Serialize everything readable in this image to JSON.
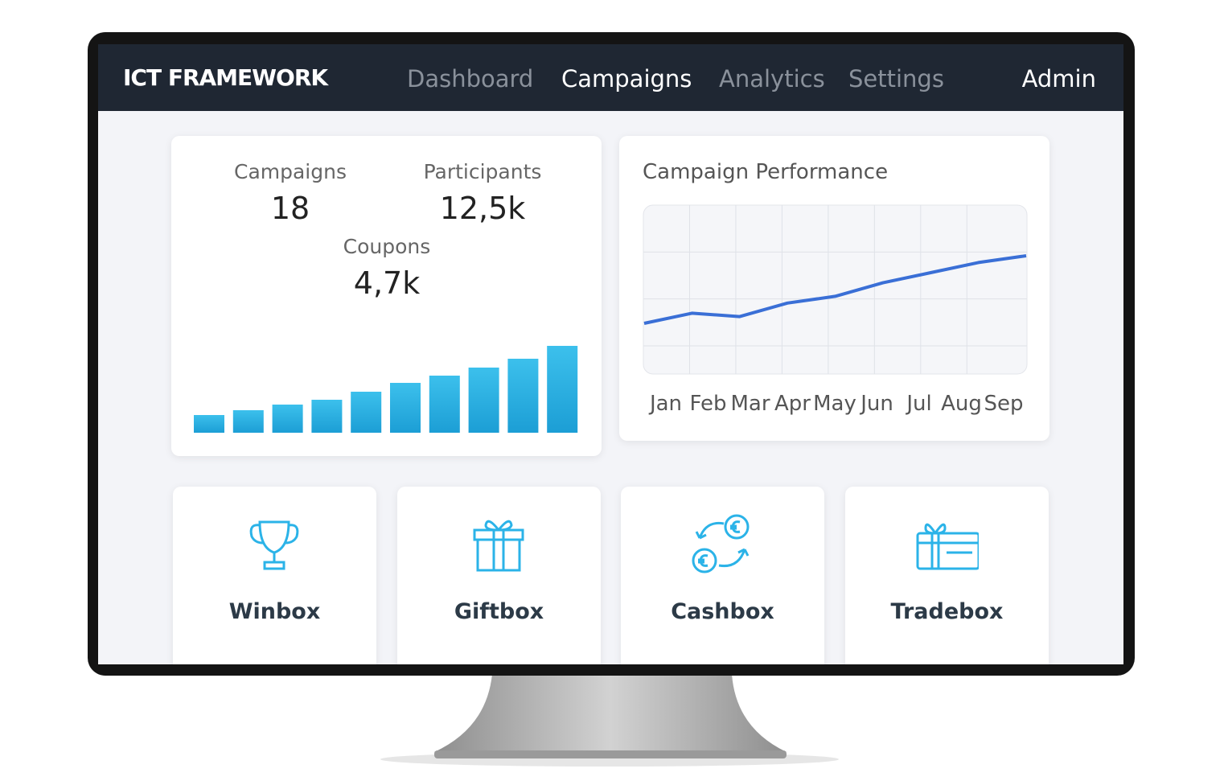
{
  "nav": {
    "brand": "ICT FRAMEWORK",
    "links": [
      "Dashboard",
      "Campaigns",
      "Analytics",
      "Settings"
    ],
    "active_link": 1,
    "user": "Admin"
  },
  "stats": [
    {
      "label": "Campaigns",
      "value": "18"
    },
    {
      "label": "Participants",
      "value": "12,5k"
    },
    {
      "label": "Coupons",
      "value": "4,7k"
    }
  ],
  "chart_data": [
    {
      "type": "bar",
      "values": [
        22,
        28,
        35,
        41,
        51,
        62,
        71,
        81,
        92,
        108
      ],
      "ylim": [
        0,
        110
      ],
      "color": "#25aee2"
    },
    {
      "type": "line",
      "title": "Campaign Performance",
      "categories": [
        "Jan",
        "Feb",
        "Mar",
        "Apr",
        "May",
        "Jun",
        "Jul",
        "Aug",
        "Sep"
      ],
      "values": [
        30,
        36,
        34,
        42,
        46,
        54,
        60,
        66,
        70
      ],
      "ylim": [
        0,
        100
      ],
      "grid": true,
      "color": "#3a6fd6"
    }
  ],
  "tiles": [
    "Winbox",
    "Giftbox",
    "Cashbox",
    "Tradebox"
  ]
}
